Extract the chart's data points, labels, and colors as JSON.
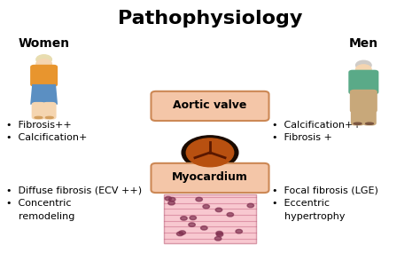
{
  "title": "Pathophysiology",
  "title_fontsize": 16,
  "title_fontweight": "bold",
  "background_color": "#ffffff",
  "women_label": "Women",
  "men_label": "Men",
  "label_fontsize": 10,
  "label_fontweight": "bold",
  "women_bullets_top": [
    "•  Fibrosis++",
    "•  Calcification+"
  ],
  "women_bullets_bottom": [
    "•  Diffuse fibrosis (ECV ++)",
    "•  Concentric\n    remodeling"
  ],
  "men_bullets_top": [
    "•  Calcification++",
    "•  Fibrosis +"
  ],
  "men_bullets_bottom": [
    "•  Focal fibrosis (LGE)",
    "•  Eccentric\n    hypertrophy"
  ],
  "aortic_valve_label": "Aortic valve",
  "myocardium_label": "Myocardium",
  "box_facecolor": "#f4c6a8",
  "box_edgecolor": "#cc8855",
  "bullet_fontsize": 8,
  "section_label_fontsize": 9
}
